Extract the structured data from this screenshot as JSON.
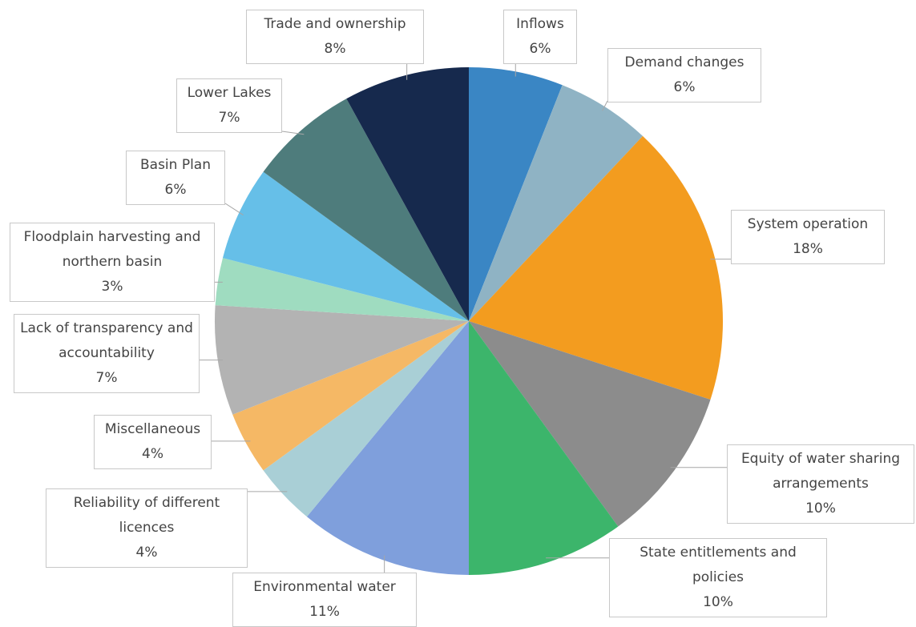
{
  "chart_data": {
    "type": "pie",
    "categories": [
      "Inflows",
      "Demand changes",
      "System operation",
      "Equity of water sharing arrangements",
      "State entitlements and policies",
      "Environmental water",
      "Reliability of different licences",
      "Miscellaneous",
      "Lack of transparency and accountability",
      "Floodplain harvesting and northern basin",
      "Basin Plan",
      "Lower Lakes",
      "Trade and ownership"
    ],
    "values": [
      6,
      6,
      18,
      10,
      10,
      11,
      4,
      4,
      7,
      3,
      6,
      7,
      8
    ],
    "value_labels": [
      "6%",
      "6%",
      "18%",
      "10%",
      "10%",
      "11%",
      "4%",
      "4%",
      "7%",
      "3%",
      "6%",
      "7%",
      "8%"
    ],
    "colors": [
      "#3a86c4",
      "#8fb3c4",
      "#f39c1f",
      "#8c8c8c",
      "#3cb56b",
      "#7f9fdc",
      "#a9cfd6",
      "#f5b865",
      "#b3b3b3",
      "#9fdcc0",
      "#66bfe8",
      "#4e7c7c",
      "#16294d"
    ]
  }
}
